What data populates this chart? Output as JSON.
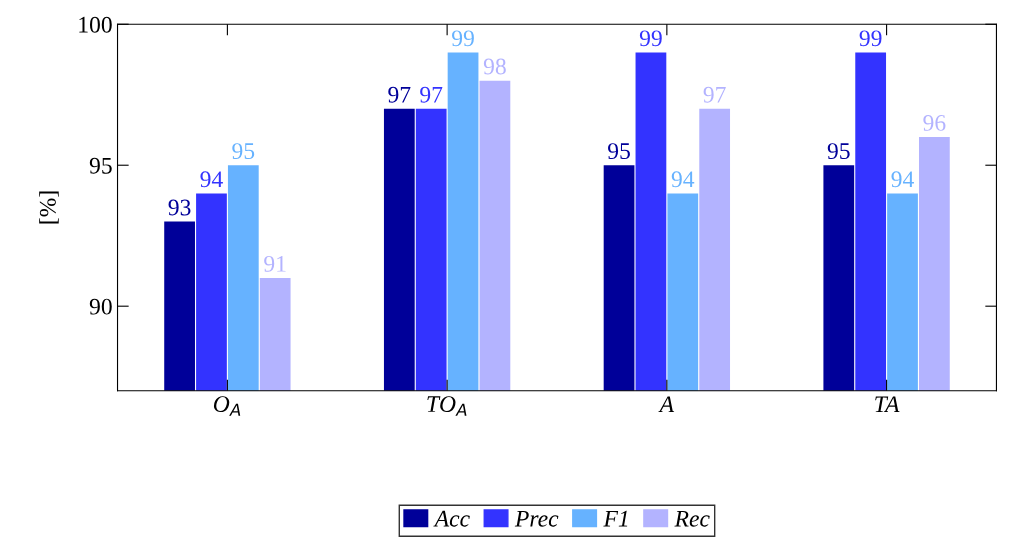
{
  "chart_data": {
    "type": "bar",
    "ylabel": "[%]",
    "categories": [
      "O$_{A}$",
      "TO$_{A}$",
      "A",
      "TA"
    ],
    "series": [
      {
        "name": "Acc",
        "color": "#000099",
        "values": [
          93,
          97,
          95,
          95
        ]
      },
      {
        "name": "Prec",
        "color": "#3333ff",
        "values": [
          94,
          97,
          99,
          99
        ]
      },
      {
        "name": "F1",
        "color": "#66b2ff",
        "values": [
          95,
          99,
          94,
          94
        ]
      },
      {
        "name": "Rec",
        "color": "#b3b3ff",
        "values": [
          91,
          98,
          97,
          96
        ]
      }
    ],
    "ylim": [
      87,
      100
    ],
    "yticks": [
      90,
      95,
      100
    ],
    "data_labels": true,
    "grid": false,
    "legend": "bottom"
  }
}
